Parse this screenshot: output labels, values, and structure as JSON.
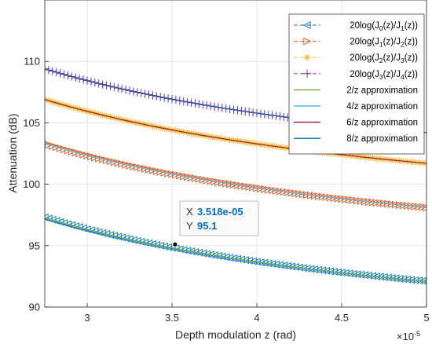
{
  "chart_data": {
    "type": "line",
    "xlabel": "Depth modulation z (rad)",
    "ylabel": "Attenuation (dB)",
    "x_exponent_label": "×10",
    "x_exponent_power": "-5",
    "xlim": [
      2.75e-05,
      5e-05
    ],
    "ylim": [
      90,
      115
    ],
    "xticks": [
      3e-05,
      3.5e-05,
      4e-05,
      4.5e-05,
      5e-05
    ],
    "xtick_labels": [
      "3",
      "3.5",
      "4",
      "4.5",
      "5"
    ],
    "yticks": [
      90,
      95,
      100,
      105,
      110
    ],
    "ytick_labels": [
      "90",
      "95",
      "100",
      "105",
      "110"
    ],
    "grid": true,
    "legend_position": "top-right",
    "legend_labels": [
      [
        "20log(J",
        "0",
        "(z)/J",
        "1",
        "(z))"
      ],
      [
        "20log(J",
        "1",
        "(z)/J",
        "2",
        "(z))"
      ],
      [
        "20log(J",
        "2",
        "(z)/J",
        "3",
        "(z))"
      ],
      [
        "20log(J",
        "3",
        "(z)/J",
        "4",
        "(z))"
      ],
      [
        "2/z approximation"
      ],
      [
        "4/z approximation"
      ],
      [
        "6/z approximation"
      ],
      [
        "8/z approximation"
      ]
    ],
    "series": [
      {
        "kind": "exact",
        "marker": "triangle-left",
        "color": "#0072BD",
        "x_start": 2.75e-05,
        "x_end": 5e-05,
        "n_points": 100,
        "y_start": 97.3,
        "y_end": 92.1
      },
      {
        "kind": "exact",
        "marker": "triangle-right",
        "color": "#D95319",
        "x_start": 2.75e-05,
        "x_end": 5e-05,
        "n_points": 100,
        "y_start": 103.3,
        "y_end": 98.1
      },
      {
        "kind": "exact",
        "marker": "asterisk",
        "color": "#EDB120",
        "x_start": 2.75e-05,
        "x_end": 5e-05,
        "n_points": 100,
        "y_start": 106.9,
        "y_end": 101.7
      },
      {
        "kind": "exact",
        "marker": "plus",
        "color": "#7E2F8E",
        "x_start": 2.75e-05,
        "x_end": 5e-05,
        "n_points": 100,
        "y_start": 109.4,
        "y_end": 104.2
      },
      {
        "kind": "approx",
        "color": "#77AC30",
        "x_start": 2.75e-05,
        "x_end": 5e-05,
        "y_start": 97.3,
        "y_end": 92.1
      },
      {
        "kind": "approx",
        "color": "#4DBEEE",
        "x_start": 2.75e-05,
        "x_end": 5e-05,
        "y_start": 103.3,
        "y_end": 98.1
      },
      {
        "kind": "approx",
        "color": "#A2142F",
        "x_start": 2.75e-05,
        "x_end": 5e-05,
        "y_start": 106.9,
        "y_end": 101.7
      },
      {
        "kind": "approx",
        "color": "#0072BD",
        "x_start": 2.75e-05,
        "x_end": 5e-05,
        "y_start": 109.4,
        "y_end": 104.2
      }
    ],
    "datatip": {
      "x": 3.518e-05,
      "y": 95.1,
      "x_label": "X",
      "y_label": "Y",
      "x_text": "3.518e-05",
      "y_text": "95.1"
    }
  }
}
